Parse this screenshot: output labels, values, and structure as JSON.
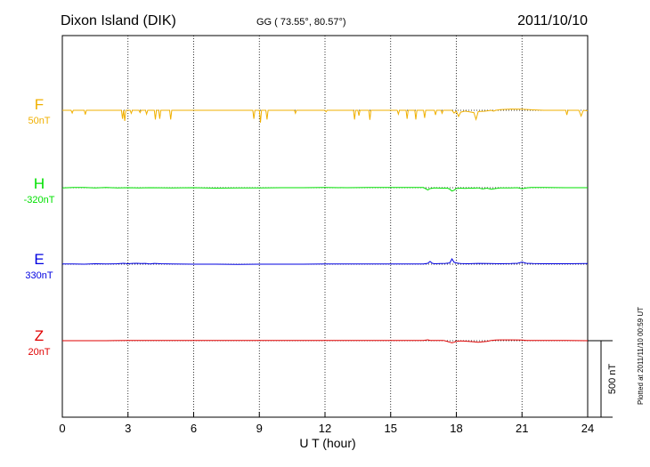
{
  "header": {
    "station": "Dixon Island (DIK)",
    "coords": "GG ( 73.55°,  80.57°)",
    "date": "2011/10/10"
  },
  "side_note": "Plotted at 2011/11/10 00:59 UT",
  "scale_bar_label": "500 nT",
  "chart_data": {
    "type": "line",
    "xlabel": "U T (hour)",
    "xlim": [
      0,
      24
    ],
    "x_ticks": [
      "0",
      "3",
      "6",
      "9",
      "12",
      "15",
      "18",
      "21",
      "24"
    ],
    "scale_nT_per_bar": 500,
    "series": [
      {
        "name": "F",
        "offset_label": "50nT",
        "color": "#f0b000",
        "baseline": 0,
        "points": [
          [
            0,
            0
          ],
          [
            0.4,
            0
          ],
          [
            0.45,
            -18
          ],
          [
            0.5,
            0
          ],
          [
            1.0,
            0
          ],
          [
            1.05,
            -28
          ],
          [
            1.1,
            0
          ],
          [
            2.7,
            0
          ],
          [
            2.75,
            -55
          ],
          [
            2.8,
            0
          ],
          [
            2.85,
            -70
          ],
          [
            2.9,
            0
          ],
          [
            3.1,
            0
          ],
          [
            3.15,
            -20
          ],
          [
            3.2,
            0
          ],
          [
            3.5,
            0
          ],
          [
            3.55,
            -15
          ],
          [
            3.6,
            0
          ],
          [
            3.8,
            0
          ],
          [
            3.85,
            -25
          ],
          [
            3.9,
            0
          ],
          [
            4.2,
            0
          ],
          [
            4.25,
            -60
          ],
          [
            4.3,
            0
          ],
          [
            4.4,
            0
          ],
          [
            4.45,
            -55
          ],
          [
            4.5,
            0
          ],
          [
            4.9,
            0
          ],
          [
            4.95,
            -60
          ],
          [
            5.0,
            0
          ],
          [
            8.7,
            0
          ],
          [
            8.75,
            -55
          ],
          [
            8.8,
            0
          ],
          [
            9.0,
            0
          ],
          [
            9.05,
            -80
          ],
          [
            9.1,
            0
          ],
          [
            9.3,
            0
          ],
          [
            9.35,
            -60
          ],
          [
            9.4,
            0
          ],
          [
            10.6,
            0
          ],
          [
            10.65,
            -20
          ],
          [
            10.7,
            0
          ],
          [
            12.0,
            0
          ],
          [
            12.05,
            -10
          ],
          [
            12.1,
            0
          ],
          [
            13.3,
            0
          ],
          [
            13.35,
            -60
          ],
          [
            13.4,
            0
          ],
          [
            13.5,
            0
          ],
          [
            13.55,
            -35
          ],
          [
            13.6,
            0
          ],
          [
            14.0,
            0
          ],
          [
            14.05,
            -62
          ],
          [
            14.1,
            0
          ],
          [
            15.3,
            0
          ],
          [
            15.35,
            -25
          ],
          [
            15.4,
            0
          ],
          [
            15.7,
            0
          ],
          [
            15.75,
            -55
          ],
          [
            15.8,
            0
          ],
          [
            16.1,
            0
          ],
          [
            16.15,
            -60
          ],
          [
            16.2,
            0
          ],
          [
            16.5,
            0
          ],
          [
            16.55,
            -50
          ],
          [
            16.6,
            0
          ],
          [
            17.0,
            0
          ],
          [
            17.05,
            -30
          ],
          [
            17.1,
            0
          ],
          [
            17.3,
            0
          ],
          [
            17.35,
            -20
          ],
          [
            17.4,
            0
          ],
          [
            17.8,
            0
          ],
          [
            17.9,
            -18
          ],
          [
            18.0,
            -6
          ],
          [
            18.1,
            -40
          ],
          [
            18.2,
            -12
          ],
          [
            18.4,
            -5
          ],
          [
            18.6,
            -10
          ],
          [
            18.8,
            -15
          ],
          [
            18.9,
            -60
          ],
          [
            19.0,
            -8
          ],
          [
            19.3,
            -6
          ],
          [
            19.6,
            0
          ],
          [
            19.7,
            -6
          ],
          [
            19.8,
            0
          ],
          [
            20.0,
            4
          ],
          [
            20.5,
            8
          ],
          [
            21.0,
            7
          ],
          [
            21.5,
            3
          ],
          [
            22.0,
            0
          ],
          [
            22.5,
            0
          ],
          [
            23.0,
            0
          ],
          [
            23.05,
            -30
          ],
          [
            23.1,
            0
          ],
          [
            23.6,
            0
          ],
          [
            23.7,
            -38
          ],
          [
            23.8,
            0
          ],
          [
            24,
            -3
          ]
        ]
      },
      {
        "name": "H",
        "offset_label": "-320nT",
        "color": "#00e000",
        "baseline": 0,
        "points": [
          [
            0,
            -2
          ],
          [
            0.5,
            1
          ],
          [
            1.0,
            2
          ],
          [
            1.5,
            -1
          ],
          [
            2.0,
            1
          ],
          [
            2.5,
            -1
          ],
          [
            3.0,
            0
          ],
          [
            3.5,
            -2
          ],
          [
            4.0,
            0
          ],
          [
            5.0,
            -1
          ],
          [
            6.0,
            0
          ],
          [
            7.0,
            -3
          ],
          [
            8.0,
            -2
          ],
          [
            9.0,
            -1
          ],
          [
            10.0,
            0
          ],
          [
            11.0,
            0
          ],
          [
            12.0,
            1
          ],
          [
            13.0,
            0
          ],
          [
            14.0,
            1
          ],
          [
            15.0,
            1
          ],
          [
            16.0,
            1
          ],
          [
            16.5,
            1
          ],
          [
            16.7,
            -15
          ],
          [
            16.8,
            -6
          ],
          [
            17.0,
            -2
          ],
          [
            17.3,
            -3
          ],
          [
            17.6,
            -3
          ],
          [
            17.7,
            -10
          ],
          [
            17.8,
            -22
          ],
          [
            17.9,
            -16
          ],
          [
            18.0,
            -5
          ],
          [
            18.2,
            -3
          ],
          [
            18.4,
            -4
          ],
          [
            18.6,
            -3
          ],
          [
            18.8,
            -3
          ],
          [
            19.0,
            -1
          ],
          [
            19.2,
            -8
          ],
          [
            19.4,
            -3
          ],
          [
            19.6,
            -10
          ],
          [
            19.8,
            -5
          ],
          [
            20.0,
            -2
          ],
          [
            20.5,
            -1
          ],
          [
            20.8,
            0
          ],
          [
            21.0,
            -7
          ],
          [
            21.2,
            -2
          ],
          [
            21.4,
            1
          ],
          [
            22.0,
            1
          ],
          [
            23.0,
            0
          ],
          [
            24,
            0
          ]
        ]
      },
      {
        "name": "E",
        "offset_label": "330nT",
        "color": "#0000e0",
        "baseline": 0,
        "points": [
          [
            0,
            1
          ],
          [
            0.5,
            2
          ],
          [
            1.0,
            0
          ],
          [
            1.5,
            3
          ],
          [
            2.0,
            1
          ],
          [
            2.5,
            3
          ],
          [
            2.8,
            6
          ],
          [
            3.0,
            3
          ],
          [
            3.2,
            5
          ],
          [
            3.4,
            6
          ],
          [
            3.6,
            4
          ],
          [
            3.8,
            5
          ],
          [
            4.0,
            2
          ],
          [
            4.2,
            5
          ],
          [
            4.5,
            3
          ],
          [
            5.0,
            1
          ],
          [
            6.0,
            0
          ],
          [
            7.0,
            0
          ],
          [
            8.0,
            -1
          ],
          [
            9.0,
            0
          ],
          [
            10.0,
            0
          ],
          [
            11.0,
            0
          ],
          [
            12.0,
            1
          ],
          [
            13.0,
            1
          ],
          [
            14.0,
            1
          ],
          [
            15.0,
            1
          ],
          [
            16.0,
            1
          ],
          [
            16.5,
            2
          ],
          [
            16.7,
            6
          ],
          [
            16.8,
            18
          ],
          [
            16.9,
            6
          ],
          [
            17.0,
            3
          ],
          [
            17.3,
            4
          ],
          [
            17.5,
            5
          ],
          [
            17.7,
            8
          ],
          [
            17.8,
            35
          ],
          [
            17.9,
            12
          ],
          [
            18.0,
            8
          ],
          [
            18.1,
            6
          ],
          [
            18.2,
            4
          ],
          [
            18.5,
            3
          ],
          [
            19.0,
            5
          ],
          [
            19.5,
            4
          ],
          [
            20.0,
            3
          ],
          [
            20.5,
            4
          ],
          [
            20.8,
            6
          ],
          [
            21.0,
            14
          ],
          [
            21.2,
            6
          ],
          [
            21.5,
            4
          ],
          [
            22.0,
            3
          ],
          [
            23.0,
            3
          ],
          [
            24,
            4
          ]
        ]
      },
      {
        "name": "Z",
        "offset_label": "20nT",
        "color": "#e00000",
        "baseline": 0,
        "points": [
          [
            0,
            0
          ],
          [
            1.0,
            0
          ],
          [
            2.0,
            0
          ],
          [
            3.0,
            1
          ],
          [
            4.0,
            1
          ],
          [
            5.0,
            1
          ],
          [
            6.0,
            1
          ],
          [
            7.0,
            1
          ],
          [
            8.0,
            1
          ],
          [
            9.0,
            2
          ],
          [
            10.0,
            2
          ],
          [
            11.0,
            2
          ],
          [
            12.0,
            2
          ],
          [
            13.0,
            2
          ],
          [
            14.0,
            2
          ],
          [
            15.0,
            2
          ],
          [
            16.0,
            2
          ],
          [
            16.5,
            2
          ],
          [
            16.7,
            6
          ],
          [
            16.8,
            2
          ],
          [
            17.0,
            1
          ],
          [
            17.4,
            2
          ],
          [
            17.6,
            -5
          ],
          [
            17.7,
            -10
          ],
          [
            17.8,
            -14
          ],
          [
            17.9,
            -10
          ],
          [
            18.0,
            -4
          ],
          [
            18.2,
            -1
          ],
          [
            18.4,
            -3
          ],
          [
            18.6,
            -5
          ],
          [
            18.8,
            -7
          ],
          [
            19.0,
            -10
          ],
          [
            19.2,
            -7
          ],
          [
            19.4,
            -4
          ],
          [
            19.6,
            1
          ],
          [
            19.8,
            4
          ],
          [
            20.0,
            5
          ],
          [
            20.5,
            5
          ],
          [
            21.0,
            4
          ],
          [
            21.2,
            2
          ],
          [
            21.5,
            1
          ],
          [
            22.0,
            1
          ],
          [
            23.0,
            1
          ],
          [
            24,
            0
          ]
        ]
      }
    ]
  }
}
